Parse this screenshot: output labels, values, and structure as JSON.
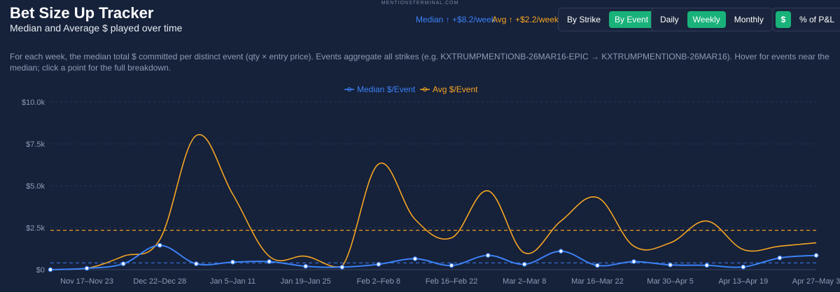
{
  "header": {
    "watermark": "MENTIONSTERMINAL.COM",
    "title": "Bet Size Up Tracker",
    "subtitle": "Median and Average $ played over time",
    "median_trend": "Median ↑ +$8.2/week",
    "avg_trend": "Avg ↑ +$2.2/week"
  },
  "controls": {
    "grouping": [
      {
        "label": "By Strike",
        "active": false
      },
      {
        "label": "By Event",
        "active": true
      }
    ],
    "period": [
      {
        "label": "Daily",
        "active": false
      },
      {
        "label": "Weekly",
        "active": true
      },
      {
        "label": "Monthly",
        "active": false
      }
    ],
    "mode": [
      {
        "label": "$",
        "active": true
      },
      {
        "label": "% of P&L",
        "active": false
      }
    ]
  },
  "description": "For each week, the median total $ committed per distinct event (qty × entry price). Events aggregate all strikes (e.g. KXTRUMPMENTIONB-26MAR16-EPIC → KXTRUMPMENTIONB-26MAR16). Hover for events near the median; click a point for the full breakdown.",
  "colors": {
    "median": "#3b82f6",
    "avg": "#f5a623",
    "background": "#16213a",
    "grid": "#2b3850",
    "active_button": "#19b27a"
  },
  "chart_data": {
    "type": "line",
    "title": "",
    "xlabel": "",
    "ylabel": "",
    "ylim": [
      0,
      10000
    ],
    "yticks": [
      0,
      2500,
      5000,
      7500,
      10000
    ],
    "ytick_labels": [
      "$0",
      "$2.5k",
      "$5.0k",
      "$7.5k",
      "$10.0k"
    ],
    "grid": true,
    "legend_position": "top-center",
    "xtick_labels": [
      "Nov 17–Nov 23",
      "Dec 22–Dec 28",
      "Jan 5–Jan 11",
      "Jan 19–Jan 25",
      "Feb 2–Feb 8",
      "Feb 16–Feb 22",
      "Mar 2–Mar 8",
      "Mar 16–Mar 22",
      "Mar 30–Apr 5",
      "Apr 13–Apr 19",
      "Apr 27–May 3"
    ],
    "series": [
      {
        "name": "Median $/Event",
        "values": [
          0,
          80,
          350,
          1450,
          350,
          450,
          480,
          200,
          150,
          320,
          650,
          250,
          850,
          320,
          1100,
          250,
          480,
          280,
          260,
          160,
          700,
          850
        ],
        "mean_line": 400
      },
      {
        "name": "Avg $/Event",
        "values": [
          0,
          80,
          800,
          1800,
          8000,
          4500,
          800,
          800,
          200,
          6300,
          3000,
          1900,
          4700,
          1000,
          2900,
          4300,
          1400,
          1600,
          2900,
          1200,
          1400,
          1600
        ],
        "mean_line": 2350
      }
    ]
  }
}
